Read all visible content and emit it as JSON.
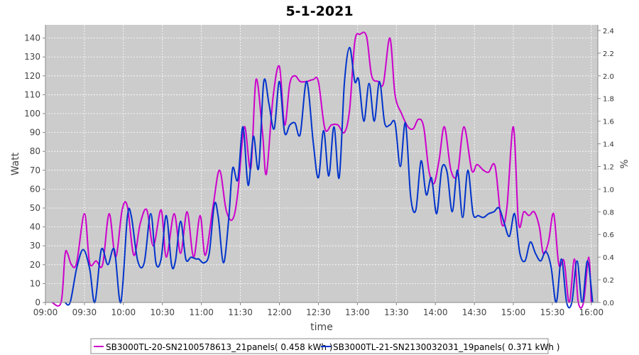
{
  "chart_data": {
    "type": "line",
    "title": "5-1-2021",
    "xlabel": "time",
    "ylabel": "Watt",
    "y2label": "%",
    "ylim": [
      0,
      147
    ],
    "y2lim": [
      0,
      2.45
    ],
    "yticks": [
      0,
      10,
      20,
      30,
      40,
      50,
      60,
      70,
      80,
      90,
      100,
      110,
      120,
      130,
      140
    ],
    "y2ticks": [
      "0.0",
      "0.2",
      "0.4",
      "0.6",
      "0.8",
      "1.0",
      "1.2",
      "1.4",
      "1.6",
      "1.8",
      "2.0",
      "2.2",
      "2.4"
    ],
    "xticks": [
      "09:00",
      "09:30",
      "10:00",
      "10:30",
      "11:00",
      "11:30",
      "12:00",
      "12:30",
      "13:00",
      "13:30",
      "14:00",
      "14:30",
      "15:00",
      "15:30",
      "16:00"
    ],
    "xlim": [
      "09:00",
      "16:05"
    ],
    "grid": true,
    "legend_position": "bottom",
    "series": [
      {
        "name": "SB3000TL-20-SN2100578613_21panels( 0.458 kWh )",
        "color": "#cc00cc",
        "x": [
          "09:05",
          "09:12",
          "09:15",
          "09:17",
          "09:20",
          "09:24",
          "09:30",
          "09:34",
          "09:39",
          "09:44",
          "09:49",
          "09:54",
          "09:59",
          "10:03",
          "10:08",
          "10:13",
          "10:18",
          "10:23",
          "10:29",
          "10:33",
          "10:39",
          "10:44",
          "10:49",
          "10:54",
          "10:59",
          "11:03",
          "11:09",
          "11:14",
          "11:19",
          "11:24",
          "11:28",
          "11:33",
          "11:38",
          "11:42",
          "11:47",
          "11:50",
          "11:55",
          "12:00",
          "12:04",
          "12:08",
          "12:12",
          "12:16",
          "12:21",
          "12:26",
          "12:30",
          "12:35",
          "12:40",
          "12:45",
          "12:50",
          "12:54",
          "12:58",
          "13:02",
          "13:07",
          "13:11",
          "13:16",
          "13:20",
          "13:25",
          "13:29",
          "13:34",
          "13:39",
          "13:43",
          "13:47",
          "13:51",
          "13:55",
          "13:59",
          "14:03",
          "14:07",
          "14:12",
          "14:17",
          "14:22",
          "14:28",
          "14:32",
          "14:37",
          "14:41",
          "14:46",
          "14:51",
          "14:55",
          "15:00",
          "15:04",
          "15:08",
          "15:12",
          "15:16",
          "15:20",
          "15:23",
          "15:27",
          "15:31",
          "15:35",
          "15:39",
          "15:43",
          "15:47",
          "15:50",
          "15:54",
          "15:58",
          "16:00"
        ],
        "y": [
          0,
          0,
          25,
          26,
          20,
          21,
          47,
          21,
          22,
          20,
          47,
          24,
          49,
          51,
          25,
          42,
          49,
          30,
          49,
          24,
          47,
          26,
          48,
          24,
          46,
          25,
          51,
          70,
          49,
          44,
          58,
          93,
          71,
          118,
          90,
          68,
          108,
          125,
          94,
          116,
          120,
          117,
          117,
          118,
          117,
          92,
          94,
          94,
          90,
          102,
          138,
          142,
          141,
          120,
          117,
          116,
          140,
          110,
          100,
          93,
          92,
          97,
          93,
          70,
          63,
          76,
          93,
          70,
          68,
          93,
          70,
          73,
          70,
          69,
          72,
          42,
          50,
          93,
          42,
          48,
          46,
          48,
          40,
          26,
          32,
          47,
          20,
          22,
          0,
          23,
          0,
          0,
          24,
          0
        ]
      },
      {
        "name": "SB3000TL-21-SN2130032031_19panels( 0.371 kWh )",
        "color": "#0033cc",
        "x": [
          "09:15",
          "09:19",
          "09:24",
          "09:29",
          "09:34",
          "09:38",
          "09:43",
          "09:48",
          "09:53",
          "09:58",
          "10:03",
          "10:06",
          "10:11",
          "10:16",
          "10:21",
          "10:25",
          "10:29",
          "10:33",
          "10:37",
          "10:40",
          "10:44",
          "10:48",
          "10:52",
          "10:56",
          "10:58",
          "11:02",
          "11:06",
          "11:10",
          "11:13",
          "11:17",
          "11:21",
          "11:24",
          "11:28",
          "11:32",
          "11:36",
          "11:40",
          "11:44",
          "11:48",
          "11:52",
          "11:56",
          "12:00",
          "12:04",
          "12:08",
          "12:12",
          "12:16",
          "12:21",
          "12:26",
          "12:30",
          "12:34",
          "12:38",
          "12:42",
          "12:46",
          "12:50",
          "12:54",
          "12:58",
          "13:01",
          "13:05",
          "13:09",
          "13:13",
          "13:17",
          "13:21",
          "13:25",
          "13:29",
          "13:33",
          "13:37",
          "13:41",
          "13:45",
          "13:49",
          "13:53",
          "13:57",
          "14:01",
          "14:05",
          "14:09",
          "14:13",
          "14:17",
          "14:21",
          "14:25",
          "14:29",
          "14:33",
          "14:37",
          "14:41",
          "14:45",
          "14:49",
          "14:53",
          "14:57",
          "15:01",
          "15:05",
          "15:09",
          "15:13",
          "15:17",
          "15:21",
          "15:25",
          "15:29",
          "15:33",
          "15:37",
          "15:41",
          "15:45",
          "15:49",
          "15:53",
          "15:57",
          "16:01"
        ],
        "y": [
          0,
          0,
          18,
          28,
          18,
          0,
          28,
          20,
          28,
          0,
          45,
          46,
          22,
          21,
          47,
          21,
          23,
          46,
          20,
          22,
          43,
          23,
          24,
          23,
          23,
          21,
          26,
          52,
          45,
          21,
          44,
          71,
          65,
          93,
          62,
          88,
          71,
          117,
          105,
          92,
          117,
          90,
          94,
          95,
          89,
          117,
          85,
          66,
          91,
          67,
          93,
          66,
          116,
          135,
          117,
          118,
          96,
          116,
          96,
          117,
          95,
          94,
          95,
          72,
          95,
          56,
          49,
          75,
          57,
          66,
          47,
          71,
          69,
          48,
          70,
          45,
          70,
          47,
          46,
          45,
          47,
          48,
          50,
          42,
          35,
          47,
          26,
          22,
          32,
          26,
          22,
          27,
          19,
          0,
          23,
          0,
          0,
          22,
          0,
          22,
          0
        ]
      }
    ]
  }
}
